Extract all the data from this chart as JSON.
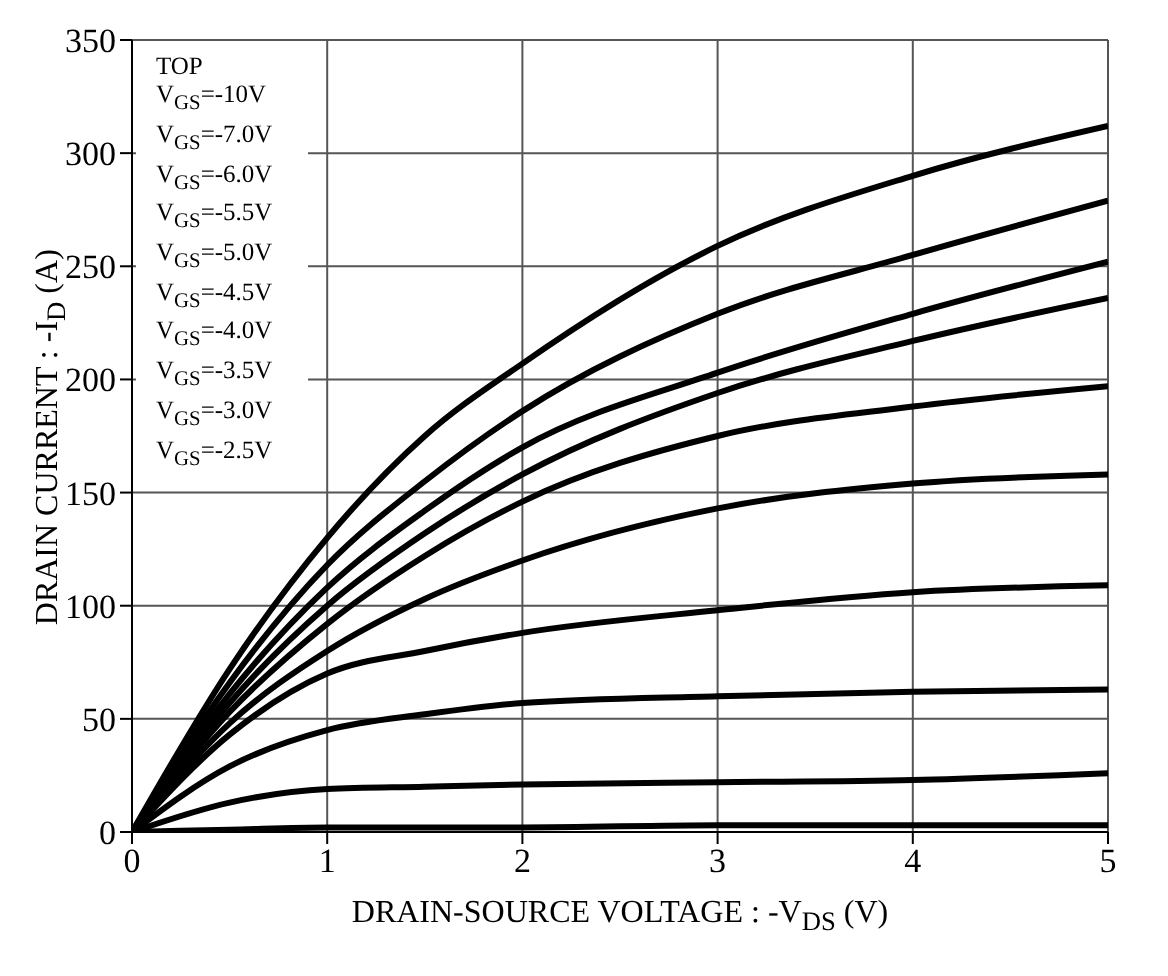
{
  "chart_data": {
    "type": "line",
    "xlabel": "DRAIN-SOURCE VOLTAGE : -V$_{DS}$ (V)",
    "ylabel": "DRAIN CURRENT : -I$_{D}$ (A)",
    "annotations": [
      "TOP",
      "V$_{GS}$=-10V",
      "V$_{GS}$=-7.0V",
      "V$_{GS}$=-6.0V",
      "V$_{GS}$=-5.5V",
      "V$_{GS}$=-5.0V",
      "V$_{GS}$=-4.5V",
      "V$_{GS}$=-4.0V",
      "V$_{GS}$=-3.5V",
      "V$_{GS}$=-3.0V",
      "V$_{GS}$=-2.5V"
    ],
    "x": [
      0,
      0.5,
      1,
      1.5,
      2,
      3,
      4,
      5
    ],
    "series": [
      {
        "color": "#000000",
        "values": [
          0,
          72,
          130,
          175,
          207,
          259,
          290,
          312
        ]
      },
      {
        "color": "#000000",
        "values": [
          0,
          66,
          118,
          155,
          186,
          229,
          255,
          279
        ]
      },
      {
        "color": "#000000",
        "values": [
          0,
          61,
          108,
          142,
          170,
          203,
          229,
          252
        ]
      },
      {
        "color": "#000000",
        "values": [
          0,
          57,
          100,
          132,
          158,
          194,
          217,
          236
        ]
      },
      {
        "color": "#000000",
        "values": [
          0,
          53,
          92,
          122,
          146,
          175,
          188,
          197
        ]
      },
      {
        "color": "#000000",
        "values": [
          0,
          48,
          80,
          103,
          120,
          143,
          154,
          158
        ]
      },
      {
        "color": "#000000",
        "values": [
          0,
          43,
          70,
          80,
          88,
          98,
          106,
          109
        ]
      },
      {
        "color": "#000000",
        "values": [
          0,
          29,
          45,
          52,
          57,
          60,
          62,
          63
        ]
      },
      {
        "color": "#000000",
        "values": [
          0,
          13,
          19,
          20,
          21,
          22,
          23,
          26
        ]
      },
      {
        "color": "#000000",
        "values": [
          0,
          1,
          2,
          2,
          2,
          3,
          3,
          3
        ]
      }
    ],
    "xlim": [
      0,
      5
    ],
    "xticks": [
      0,
      1,
      2,
      3,
      4,
      5
    ],
    "ylim": [
      0,
      350
    ],
    "yticks": [
      0,
      50,
      100,
      150,
      200,
      250,
      300,
      350
    ],
    "grid": true,
    "marker": "none",
    "line_style": "solid"
  }
}
